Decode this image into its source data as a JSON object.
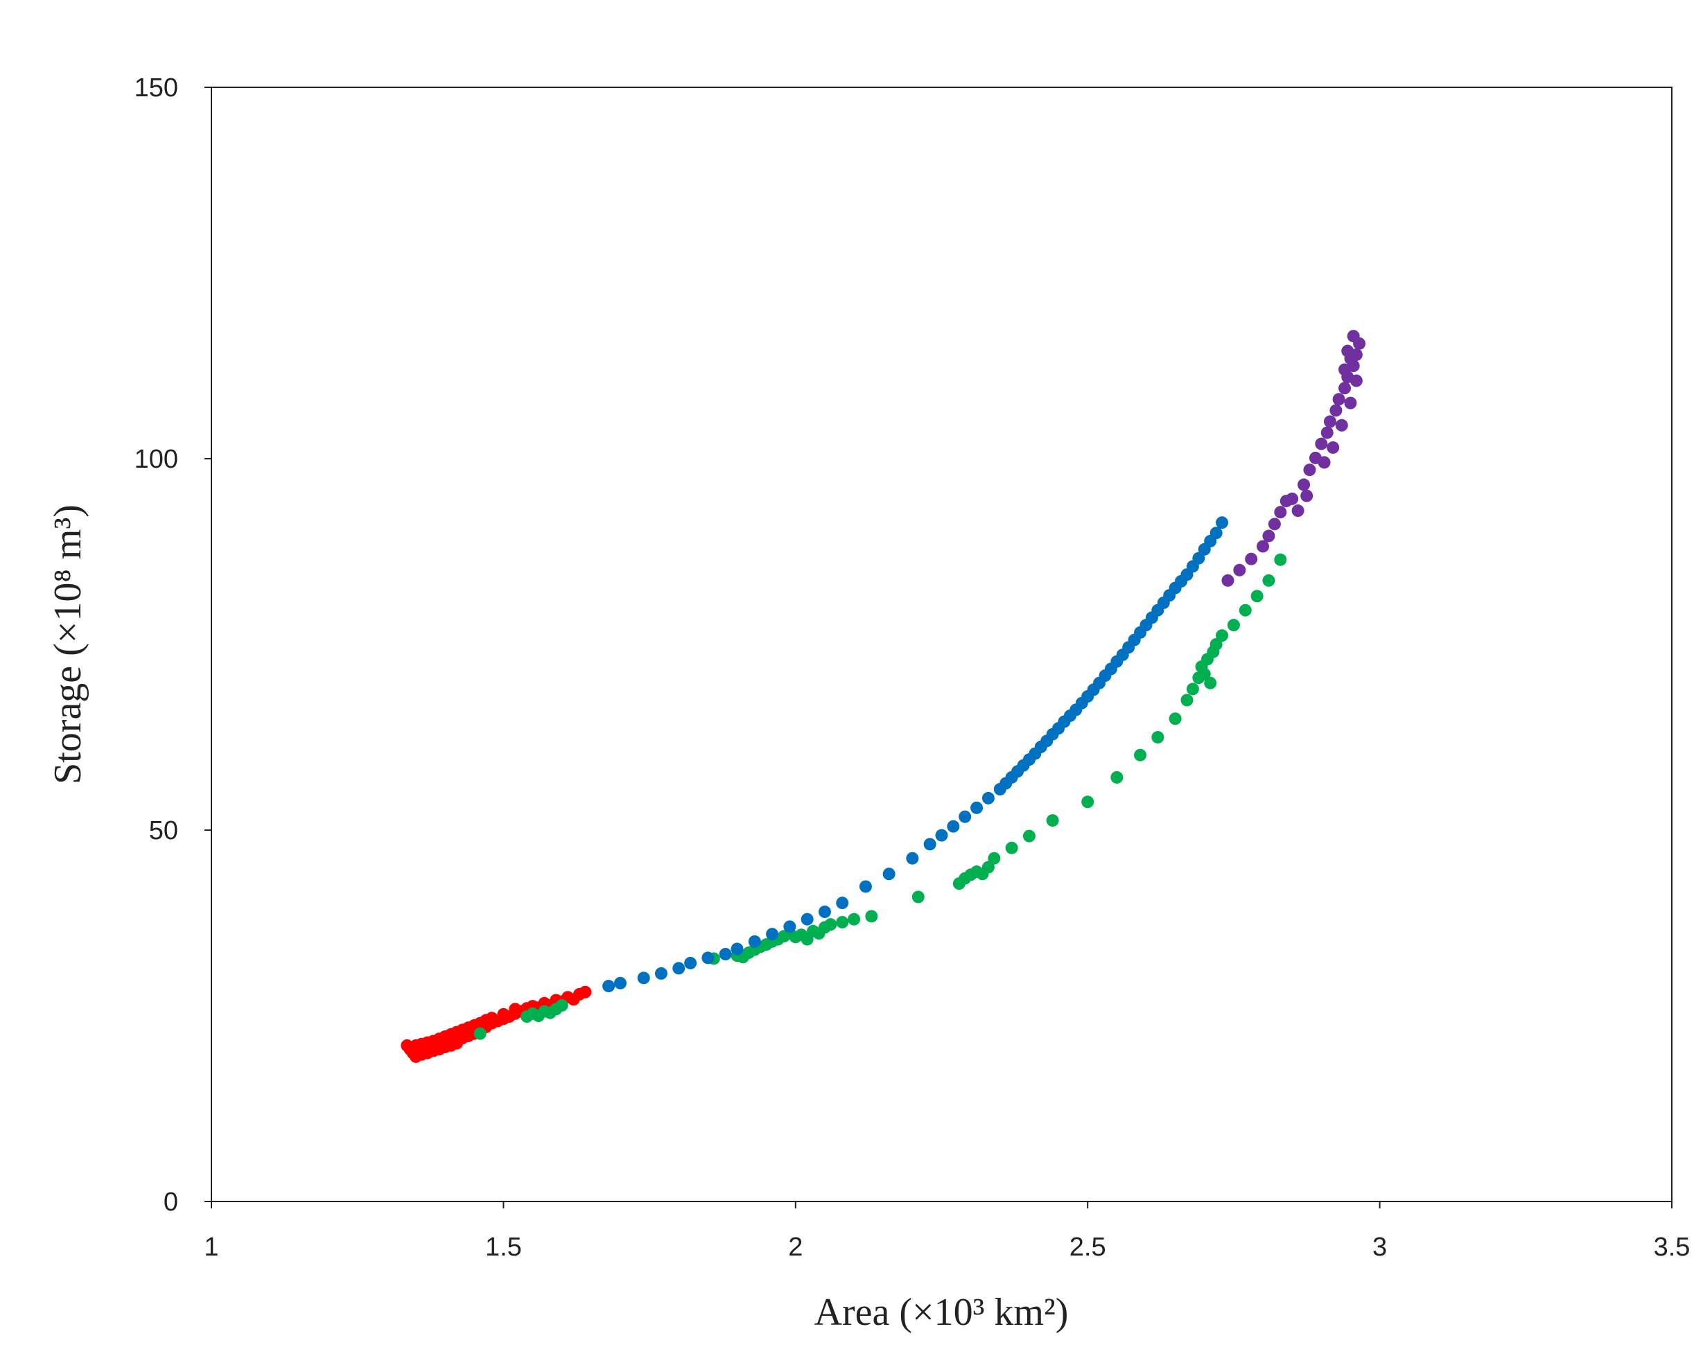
{
  "chart_data": {
    "type": "scatter",
    "title": "",
    "xlabel": "Area (×10³ km²)",
    "ylabel": "Storage (×10⁸ m³)",
    "xlim": [
      1,
      3.5
    ],
    "ylim": [
      0,
      150
    ],
    "x_ticks": [
      "1",
      "1.5",
      "2",
      "2.5",
      "3",
      "3.5"
    ],
    "y_ticks": [
      "0",
      "50",
      "100",
      "150"
    ],
    "grid": false,
    "legend": "none",
    "series": [
      {
        "color": "#ff0000",
        "points": [
          [
            1.335,
            21.0
          ],
          [
            1.34,
            20.5
          ],
          [
            1.345,
            20.0
          ],
          [
            1.35,
            19.5
          ],
          [
            1.35,
            21.0
          ],
          [
            1.355,
            20.3
          ],
          [
            1.36,
            19.8
          ],
          [
            1.36,
            21.2
          ],
          [
            1.365,
            20.6
          ],
          [
            1.37,
            20.0
          ],
          [
            1.37,
            21.4
          ],
          [
            1.375,
            20.8
          ],
          [
            1.38,
            20.3
          ],
          [
            1.38,
            21.6
          ],
          [
            1.385,
            21.0
          ],
          [
            1.39,
            20.5
          ],
          [
            1.39,
            21.9
          ],
          [
            1.395,
            21.2
          ],
          [
            1.4,
            20.8
          ],
          [
            1.4,
            22.2
          ],
          [
            1.405,
            21.5
          ],
          [
            1.41,
            21.0
          ],
          [
            1.41,
            22.5
          ],
          [
            1.415,
            21.8
          ],
          [
            1.42,
            21.3
          ],
          [
            1.42,
            22.8
          ],
          [
            1.43,
            22.0
          ],
          [
            1.43,
            23.1
          ],
          [
            1.44,
            22.3
          ],
          [
            1.44,
            23.4
          ],
          [
            1.45,
            22.6
          ],
          [
            1.45,
            23.7
          ],
          [
            1.46,
            22.9
          ],
          [
            1.46,
            24.0
          ],
          [
            1.47,
            23.5
          ],
          [
            1.47,
            24.4
          ],
          [
            1.48,
            24.0
          ],
          [
            1.48,
            24.7
          ],
          [
            1.49,
            24.3
          ],
          [
            1.5,
            24.6
          ],
          [
            1.5,
            25.2
          ],
          [
            1.51,
            24.9
          ],
          [
            1.52,
            25.3
          ],
          [
            1.52,
            25.9
          ],
          [
            1.53,
            25.6
          ],
          [
            1.54,
            26.0
          ],
          [
            1.55,
            26.3
          ],
          [
            1.56,
            26.1
          ],
          [
            1.57,
            26.7
          ],
          [
            1.58,
            26.4
          ],
          [
            1.59,
            27.1
          ],
          [
            1.6,
            26.9
          ],
          [
            1.61,
            27.5
          ],
          [
            1.62,
            27.2
          ],
          [
            1.63,
            27.9
          ],
          [
            1.64,
            28.2
          ]
        ]
      },
      {
        "color": "#00b050",
        "points": [
          [
            1.46,
            22.6
          ],
          [
            1.54,
            24.9
          ],
          [
            1.55,
            25.3
          ],
          [
            1.56,
            25.0
          ],
          [
            1.57,
            25.6
          ],
          [
            1.58,
            25.4
          ],
          [
            1.59,
            25.9
          ],
          [
            1.6,
            26.4
          ],
          [
            1.86,
            32.7
          ],
          [
            1.9,
            33.1
          ],
          [
            1.91,
            32.9
          ],
          [
            1.92,
            33.5
          ],
          [
            1.93,
            33.9
          ],
          [
            1.94,
            34.3
          ],
          [
            1.95,
            34.6
          ],
          [
            1.96,
            35.0
          ],
          [
            1.97,
            35.3
          ],
          [
            1.98,
            35.7
          ],
          [
            1.99,
            36.1
          ],
          [
            2.0,
            35.6
          ],
          [
            2.01,
            35.9
          ],
          [
            2.02,
            35.3
          ],
          [
            2.03,
            36.4
          ],
          [
            2.04,
            36.1
          ],
          [
            2.05,
            36.9
          ],
          [
            2.06,
            37.3
          ],
          [
            2.08,
            37.6
          ],
          [
            2.1,
            38.0
          ],
          [
            2.13,
            38.4
          ],
          [
            2.21,
            41.0
          ],
          [
            2.28,
            42.8
          ],
          [
            2.29,
            43.5
          ],
          [
            2.3,
            44.0
          ],
          [
            2.31,
            44.4
          ],
          [
            2.32,
            44.1
          ],
          [
            2.33,
            45.0
          ],
          [
            2.34,
            46.2
          ],
          [
            2.37,
            47.6
          ],
          [
            2.4,
            49.2
          ],
          [
            2.44,
            51.3
          ],
          [
            2.5,
            53.8
          ],
          [
            2.55,
            57.1
          ],
          [
            2.59,
            60.1
          ],
          [
            2.62,
            62.5
          ],
          [
            2.65,
            65.0
          ],
          [
            2.67,
            67.5
          ],
          [
            2.68,
            69.0
          ],
          [
            2.69,
            70.5
          ],
          [
            2.695,
            72.0
          ],
          [
            2.7,
            71.0
          ],
          [
            2.705,
            73.0
          ],
          [
            2.71,
            69.8
          ],
          [
            2.715,
            74.0
          ],
          [
            2.72,
            75.0
          ],
          [
            2.73,
            76.2
          ],
          [
            2.75,
            77.6
          ],
          [
            2.77,
            79.6
          ],
          [
            2.79,
            81.5
          ],
          [
            2.81,
            83.6
          ],
          [
            2.83,
            86.4
          ]
        ]
      },
      {
        "color": "#0070c0",
        "points": [
          [
            1.68,
            29.0
          ],
          [
            1.7,
            29.4
          ],
          [
            1.74,
            30.1
          ],
          [
            1.77,
            30.7
          ],
          [
            1.8,
            31.4
          ],
          [
            1.82,
            32.1
          ],
          [
            1.85,
            32.8
          ],
          [
            1.88,
            33.3
          ],
          [
            1.9,
            34.0
          ],
          [
            1.93,
            35.0
          ],
          [
            1.96,
            36.0
          ],
          [
            1.99,
            37.0
          ],
          [
            2.02,
            38.0
          ],
          [
            2.05,
            39.0
          ],
          [
            2.08,
            40.2
          ],
          [
            2.12,
            42.4
          ],
          [
            2.16,
            44.1
          ],
          [
            2.2,
            46.2
          ],
          [
            2.23,
            48.1
          ],
          [
            2.25,
            49.3
          ],
          [
            2.27,
            50.5
          ],
          [
            2.29,
            51.8
          ],
          [
            2.31,
            53.0
          ],
          [
            2.33,
            54.3
          ],
          [
            2.35,
            55.5
          ],
          [
            2.36,
            56.3
          ],
          [
            2.37,
            57.1
          ],
          [
            2.38,
            57.9
          ],
          [
            2.39,
            58.7
          ],
          [
            2.4,
            59.5
          ],
          [
            2.41,
            60.3
          ],
          [
            2.42,
            61.2
          ],
          [
            2.43,
            62.0
          ],
          [
            2.44,
            62.9
          ],
          [
            2.45,
            63.7
          ],
          [
            2.46,
            64.6
          ],
          [
            2.47,
            65.4
          ],
          [
            2.48,
            66.2
          ],
          [
            2.49,
            67.1
          ],
          [
            2.5,
            68.0
          ],
          [
            2.51,
            68.9
          ],
          [
            2.52,
            69.8
          ],
          [
            2.53,
            70.8
          ],
          [
            2.54,
            71.7
          ],
          [
            2.55,
            72.7
          ],
          [
            2.56,
            73.6
          ],
          [
            2.57,
            74.6
          ],
          [
            2.58,
            75.6
          ],
          [
            2.59,
            76.6
          ],
          [
            2.6,
            77.6
          ],
          [
            2.61,
            78.6
          ],
          [
            2.62,
            79.6
          ],
          [
            2.63,
            80.6
          ],
          [
            2.64,
            81.6
          ],
          [
            2.65,
            82.6
          ],
          [
            2.66,
            83.5
          ],
          [
            2.67,
            84.4
          ],
          [
            2.68,
            85.5
          ],
          [
            2.69,
            86.6
          ],
          [
            2.7,
            87.8
          ],
          [
            2.71,
            88.9
          ],
          [
            2.72,
            90.0
          ],
          [
            2.73,
            91.4
          ]
        ]
      },
      {
        "color": "#7030a0",
        "points": [
          [
            2.74,
            83.6
          ],
          [
            2.76,
            85.0
          ],
          [
            2.78,
            86.5
          ],
          [
            2.8,
            88.2
          ],
          [
            2.81,
            89.6
          ],
          [
            2.82,
            91.2
          ],
          [
            2.83,
            92.8
          ],
          [
            2.84,
            94.3
          ],
          [
            2.85,
            94.6
          ],
          [
            2.86,
            93.0
          ],
          [
            2.87,
            96.5
          ],
          [
            2.875,
            95.0
          ],
          [
            2.88,
            98.5
          ],
          [
            2.89,
            100.1
          ],
          [
            2.9,
            102.0
          ],
          [
            2.905,
            99.5
          ],
          [
            2.91,
            103.5
          ],
          [
            2.915,
            105.0
          ],
          [
            2.92,
            101.5
          ],
          [
            2.925,
            106.5
          ],
          [
            2.93,
            108.0
          ],
          [
            2.935,
            104.5
          ],
          [
            2.94,
            109.5
          ],
          [
            2.945,
            111.0
          ],
          [
            2.95,
            107.5
          ],
          [
            2.955,
            112.5
          ],
          [
            2.96,
            114.0
          ],
          [
            2.965,
            115.5
          ],
          [
            2.94,
            112.0
          ],
          [
            2.95,
            113.5
          ],
          [
            2.96,
            110.5
          ],
          [
            2.945,
            114.5
          ],
          [
            2.955,
            116.5
          ]
        ]
      }
    ]
  }
}
